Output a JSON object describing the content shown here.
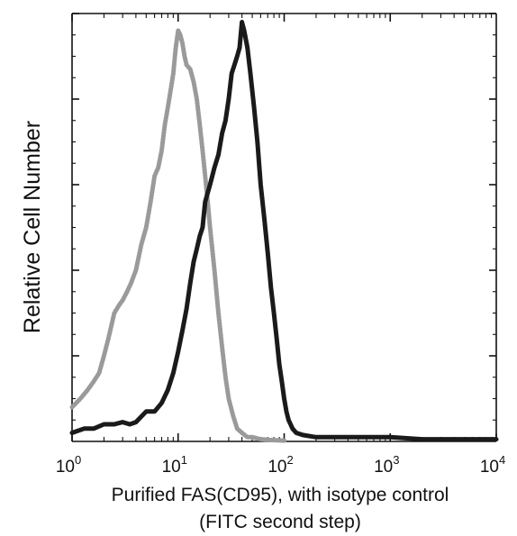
{
  "chart_data": {
    "type": "line",
    "title": "",
    "xlabel_line1": "Purified FAS(CD95), with isotype control",
    "xlabel_line2": "(FITC second step)",
    "ylabel": "Relative Cell Number",
    "x_scale": "log",
    "xlim": [
      1,
      10000
    ],
    "ylim": [
      0,
      1
    ],
    "grid": false,
    "legend": "none",
    "x_ticks": [
      {
        "base": "10",
        "exp": "0",
        "value": 1
      },
      {
        "base": "10",
        "exp": "1",
        "value": 10
      },
      {
        "base": "10",
        "exp": "2",
        "value": 100
      },
      {
        "base": "10",
        "exp": "3",
        "value": 1000
      },
      {
        "base": "10",
        "exp": "4",
        "value": 10000
      }
    ],
    "series": [
      {
        "color": "#1a1a1a",
        "stroke_style": "solid",
        "x": [
          1,
          1.3,
          1.6,
          2,
          2.5,
          3,
          3.5,
          4,
          5,
          6,
          7,
          8,
          9,
          10,
          11,
          12,
          13,
          14,
          15,
          16,
          17,
          18,
          20,
          22,
          24,
          26,
          28,
          30,
          32,
          34,
          36,
          38,
          40,
          42,
          45,
          48,
          52,
          56,
          60,
          65,
          70,
          75,
          80,
          85,
          90,
          95,
          100,
          105,
          110,
          115,
          120,
          130,
          150,
          200,
          300,
          500,
          800,
          1000,
          2000,
          5000,
          10000
        ],
        "y": [
          0.02,
          0.03,
          0.03,
          0.04,
          0.04,
          0.045,
          0.04,
          0.045,
          0.07,
          0.07,
          0.09,
          0.12,
          0.16,
          0.21,
          0.26,
          0.31,
          0.37,
          0.42,
          0.45,
          0.48,
          0.5,
          0.56,
          0.6,
          0.64,
          0.67,
          0.72,
          0.75,
          0.8,
          0.86,
          0.88,
          0.9,
          0.92,
          0.98,
          0.96,
          0.92,
          0.86,
          0.78,
          0.7,
          0.6,
          0.52,
          0.44,
          0.36,
          0.3,
          0.24,
          0.18,
          0.14,
          0.1,
          0.07,
          0.05,
          0.04,
          0.03,
          0.02,
          0.015,
          0.01,
          0.01,
          0.01,
          0.01,
          0.01,
          0.005,
          0.005,
          0.005
        ]
      },
      {
        "color": "#9a9a9a",
        "stroke_style": "dotted",
        "x": [
          1,
          1.2,
          1.4,
          1.6,
          1.8,
          2,
          2.2,
          2.5,
          2.8,
          3,
          3.3,
          3.6,
          4,
          4.5,
          5,
          5.5,
          6,
          6.5,
          7,
          7.5,
          8,
          8.5,
          9,
          9.5,
          10,
          10.5,
          11,
          11.5,
          12,
          13,
          14,
          15,
          16,
          17,
          18,
          19,
          20,
          22,
          24,
          26,
          28,
          30,
          33,
          36,
          40,
          45,
          50,
          60,
          80,
          100
        ],
        "y": [
          0.08,
          0.1,
          0.12,
          0.14,
          0.16,
          0.2,
          0.24,
          0.3,
          0.32,
          0.33,
          0.35,
          0.37,
          0.4,
          0.46,
          0.5,
          0.56,
          0.62,
          0.64,
          0.68,
          0.74,
          0.78,
          0.82,
          0.86,
          0.92,
          0.96,
          0.95,
          0.93,
          0.9,
          0.88,
          0.87,
          0.84,
          0.8,
          0.74,
          0.68,
          0.62,
          0.56,
          0.5,
          0.4,
          0.3,
          0.22,
          0.15,
          0.1,
          0.06,
          0.03,
          0.02,
          0.01,
          0.01,
          0.005,
          0.003,
          0.002
        ]
      }
    ]
  }
}
